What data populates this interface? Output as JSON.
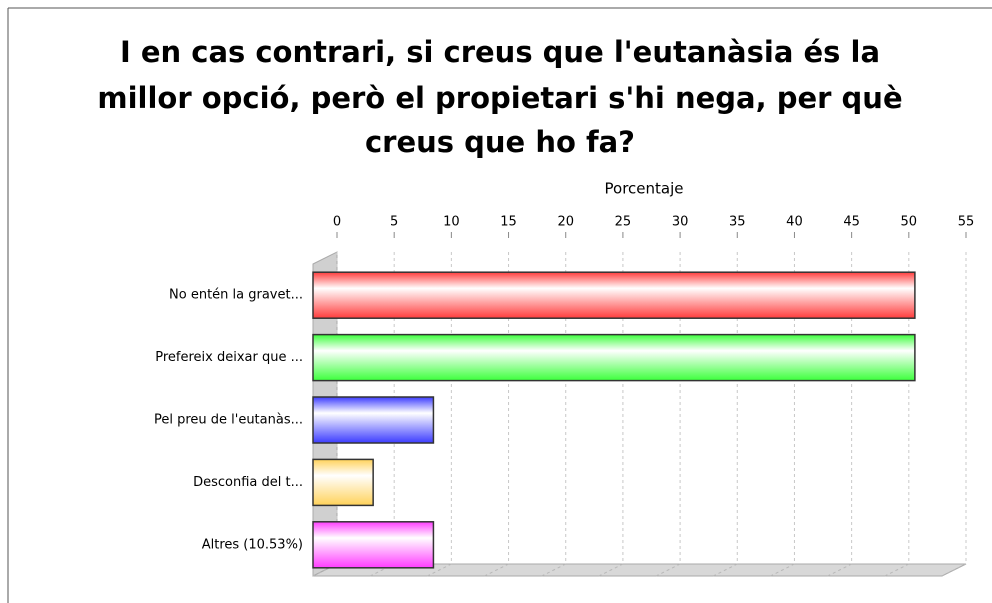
{
  "chart_data": {
    "type": "bar",
    "orientation": "horizontal",
    "title": [
      "I en cas contrari, si creus que l'eutanàsia és la",
      "millor opció, però el propietari s'hi nega, per què",
      "creus que ho fa?"
    ],
    "x_label": "Porcentaje",
    "categories": [
      "No entén la gravet...",
      "Prefereix deixar que ...",
      "Pel preu de l'eutanàs...",
      "Desconfia del t...",
      "Altres (10.53%)"
    ],
    "values": [
      52.63,
      52.63,
      10.53,
      5.26,
      10.53
    ],
    "colors": [
      "#ff3c3c",
      "#3cff3c",
      "#3c3cff",
      "#ffd25a",
      "#ff3cff"
    ],
    "xlim": [
      0,
      55
    ],
    "xticks": [
      0,
      5,
      10,
      15,
      20,
      25,
      30,
      35,
      40,
      45,
      50,
      55
    ],
    "grid": true
  }
}
